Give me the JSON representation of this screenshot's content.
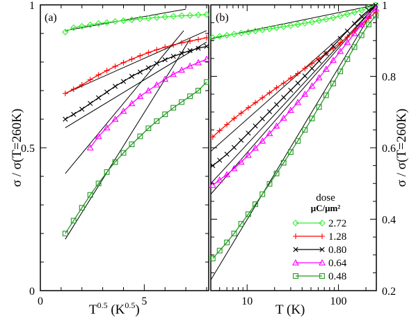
{
  "figure": {
    "ylabel_left": "σ / σ(T=260K)",
    "ylabel_right": "σ / σ(T=260K)",
    "legend_title_line1": "dose",
    "legend_title_line2": "μC/μm²"
  },
  "chart_data": [
    {
      "type": "line",
      "panel_label": "(a)",
      "xlabel": "T^0.5 (K^0.5)",
      "xlabel_parts": {
        "base": "T",
        "exp": "0.5",
        "mid": " (K",
        "exp2": "0.5",
        "end": ")"
      },
      "ylabel": "σ / σ(T=260K)",
      "xlim": [
        0,
        8.1
      ],
      "ylim": [
        0,
        1
      ],
      "xscale": "linear",
      "xticks": [
        0,
        5
      ],
      "yticks": [
        0,
        0.5,
        1
      ],
      "ytick_labels": [
        "0",
        "0.5",
        "1"
      ],
      "legend_position": "none",
      "series": [
        {
          "name": "2.72",
          "color": "#33ee33",
          "marker": "diamond",
          "x": [
            1.2,
            1.6,
            2.0,
            2.4,
            2.8,
            3.2,
            3.6,
            4.0,
            4.4,
            4.8,
            5.2,
            5.6,
            6.0,
            6.4,
            6.8,
            7.2,
            7.6,
            8.0
          ],
          "y": [
            0.905,
            0.92,
            0.925,
            0.93,
            0.935,
            0.938,
            0.942,
            0.945,
            0.948,
            0.951,
            0.953,
            0.956,
            0.958,
            0.96,
            0.962,
            0.963,
            0.965,
            0.966
          ]
        },
        {
          "name": "1.28",
          "color": "#ff0000",
          "marker": "plus",
          "x": [
            1.2,
            1.6,
            2.0,
            2.4,
            2.8,
            3.2,
            3.6,
            4.0,
            4.4,
            4.8,
            5.2,
            5.6,
            6.0,
            6.4,
            6.8,
            7.2,
            7.6,
            8.0
          ],
          "y": [
            0.69,
            0.705,
            0.72,
            0.738,
            0.755,
            0.77,
            0.785,
            0.798,
            0.81,
            0.822,
            0.833,
            0.843,
            0.852,
            0.86,
            0.867,
            0.873,
            0.879,
            0.885
          ]
        },
        {
          "name": "0.80",
          "color": "#000000",
          "marker": "cross",
          "x": [
            1.2,
            1.6,
            2.0,
            2.4,
            2.8,
            3.2,
            3.6,
            4.0,
            4.4,
            4.8,
            5.2,
            5.6,
            6.0,
            6.4,
            6.8,
            7.2,
            7.6,
            8.0
          ],
          "y": [
            0.6,
            0.617,
            0.635,
            0.655,
            0.675,
            0.695,
            0.715,
            0.732,
            0.75,
            0.765,
            0.78,
            0.795,
            0.808,
            0.82,
            0.83,
            0.84,
            0.848,
            0.855
          ]
        },
        {
          "name": "0.64",
          "color": "#ff00ff",
          "marker": "triangle",
          "x": [
            2.4,
            2.8,
            3.2,
            3.6,
            4.0,
            4.4,
            4.8,
            5.2,
            5.6,
            6.0,
            6.4,
            6.8,
            7.2,
            7.6,
            8.0
          ],
          "y": [
            0.5,
            0.54,
            0.57,
            0.6,
            0.628,
            0.655,
            0.68,
            0.7,
            0.72,
            0.74,
            0.757,
            0.772,
            0.786,
            0.798,
            0.81
          ]
        },
        {
          "name": "0.48",
          "color": "#229922",
          "marker": "square",
          "x": [
            1.2,
            1.6,
            2.0,
            2.4,
            2.8,
            3.2,
            3.6,
            4.0,
            4.4,
            4.8,
            5.2,
            5.6,
            6.0,
            6.4,
            6.8,
            7.2,
            7.6,
            8.0
          ],
          "y": [
            0.2,
            0.245,
            0.29,
            0.335,
            0.375,
            0.415,
            0.45,
            0.482,
            0.512,
            0.54,
            0.568,
            0.593,
            0.617,
            0.64,
            0.66,
            0.68,
            0.7,
            0.73
          ]
        }
      ],
      "fit_lines": [
        {
          "x": [
            1.2,
            7.0
          ],
          "y": [
            0.91,
            0.985
          ]
        },
        {
          "x": [
            1.2,
            8.0
          ],
          "y": [
            0.69,
            0.91
          ]
        },
        {
          "x": [
            1.2,
            8.0
          ],
          "y": [
            0.57,
            0.87
          ]
        },
        {
          "x": [
            1.2,
            6.9
          ],
          "y": [
            0.41,
            0.91
          ]
        },
        {
          "x": [
            1.2,
            7.2
          ],
          "y": [
            0.18,
            0.88
          ]
        }
      ]
    },
    {
      "type": "line",
      "panel_label": "(b)",
      "xlabel": "T (K)",
      "ylabel": "σ / σ(T=260K)",
      "xlim": [
        4,
        260
      ],
      "ylim": [
        0.2,
        1
      ],
      "xscale": "log",
      "xticks": [
        10,
        100
      ],
      "xtick_labels": [
        "10",
        "100"
      ],
      "yticks": [
        0.2,
        0.4,
        0.6,
        0.8,
        1.0
      ],
      "ytick_labels": [
        "0.2",
        "0.4",
        "0.6",
        "0.8",
        "1"
      ],
      "legend_position": "bottom-right",
      "series": [
        {
          "name": "2.72",
          "color": "#33ee33",
          "marker": "diamond",
          "x": [
            4.2,
            5.0,
            6.0,
            7.2,
            8.6,
            10.3,
            12.3,
            14.7,
            17.6,
            21.0,
            25.1,
            30.0,
            35.9,
            42.9,
            51.3,
            61.3,
            73.3,
            87.6,
            104.7,
            125.2,
            149.7,
            178.9,
            213.9,
            255.7
          ],
          "y": [
            0.908,
            0.912,
            0.915,
            0.918,
            0.921,
            0.924,
            0.927,
            0.93,
            0.933,
            0.936,
            0.939,
            0.942,
            0.945,
            0.949,
            0.952,
            0.956,
            0.96,
            0.964,
            0.969,
            0.974,
            0.979,
            0.985,
            0.992,
            1.0
          ]
        },
        {
          "name": "1.28",
          "color": "#ff0000",
          "marker": "plus",
          "x": [
            4.2,
            5.0,
            6.0,
            7.2,
            8.6,
            10.3,
            12.3,
            14.7,
            17.6,
            21.0,
            25.1,
            30.0,
            35.9,
            42.9,
            51.3,
            61.3,
            73.3,
            87.6,
            104.7,
            125.2,
            149.7,
            178.9,
            213.9,
            255.7
          ],
          "y": [
            0.63,
            0.648,
            0.665,
            0.682,
            0.697,
            0.712,
            0.726,
            0.74,
            0.754,
            0.768,
            0.781,
            0.795,
            0.808,
            0.822,
            0.836,
            0.85,
            0.864,
            0.879,
            0.894,
            0.91,
            0.927,
            0.944,
            0.962,
            0.98
          ]
        },
        {
          "name": "0.80",
          "color": "#000000",
          "marker": "cross",
          "x": [
            4.2,
            5.0,
            6.0,
            7.2,
            8.6,
            10.3,
            12.3,
            14.7,
            17.6,
            21.0,
            25.1,
            30.0,
            35.9,
            42.9,
            51.3,
            61.3,
            73.3,
            87.6,
            104.7,
            125.2,
            149.7,
            178.9,
            213.9,
            255.7
          ],
          "y": [
            0.55,
            0.565,
            0.582,
            0.601,
            0.621,
            0.641,
            0.661,
            0.681,
            0.701,
            0.721,
            0.741,
            0.761,
            0.781,
            0.801,
            0.822,
            0.843,
            0.864,
            0.885,
            0.906,
            0.927,
            0.948,
            0.968,
            0.985,
            0.999
          ]
        },
        {
          "name": "0.64",
          "color": "#ff00ff",
          "marker": "triangle",
          "x": [
            4.2,
            5.0,
            6.0,
            7.2,
            8.6,
            10.3,
            12.3,
            14.7,
            17.6,
            21.0,
            25.1,
            30.0,
            35.9,
            42.9,
            51.3,
            61.3,
            73.3,
            87.6,
            104.7,
            125.2,
            149.7,
            178.9,
            213.9,
            255.7
          ],
          "y": [
            0.495,
            0.51,
            0.525,
            0.542,
            0.56,
            0.579,
            0.599,
            0.619,
            0.64,
            0.661,
            0.683,
            0.705,
            0.727,
            0.75,
            0.773,
            0.796,
            0.82,
            0.845,
            0.87,
            0.895,
            0.92,
            0.945,
            0.97,
            0.99
          ]
        },
        {
          "name": "0.48",
          "color": "#229922",
          "marker": "square",
          "x": [
            4.2,
            5.0,
            6.0,
            7.2,
            8.6,
            10.3,
            12.3,
            14.7,
            17.6,
            21.0,
            25.1,
            30.0,
            35.9,
            42.9,
            51.3,
            61.3,
            73.3,
            87.6,
            104.7,
            125.2,
            149.7,
            178.9,
            213.9,
            255.7
          ],
          "y": [
            0.29,
            0.312,
            0.335,
            0.36,
            0.387,
            0.414,
            0.442,
            0.47,
            0.499,
            0.528,
            0.558,
            0.588,
            0.619,
            0.65,
            0.682,
            0.714,
            0.747,
            0.78,
            0.814,
            0.848,
            0.882,
            0.915,
            0.945,
            0.97
          ]
        }
      ],
      "fit_lines": [
        {
          "x": [
            4.0,
            260
          ],
          "y": [
            0.905,
            1.0
          ]
        },
        {
          "x": [
            4.0,
            260
          ],
          "y": [
            0.59,
            1.0
          ]
        },
        {
          "x": [
            4.0,
            260
          ],
          "y": [
            0.5,
            1.0
          ]
        },
        {
          "x": [
            4.0,
            260
          ],
          "y": [
            0.47,
            1.0
          ]
        },
        {
          "x": [
            4.0,
            260
          ],
          "y": [
            0.23,
            1.0
          ]
        }
      ]
    }
  ]
}
